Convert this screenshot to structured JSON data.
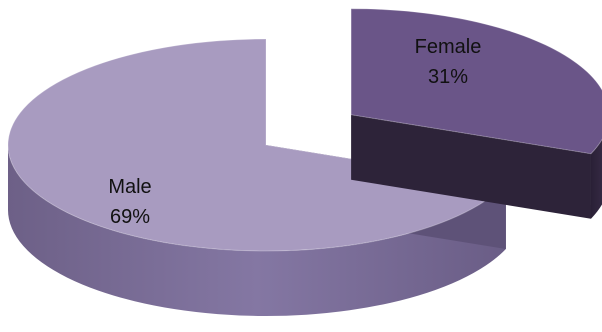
{
  "chart_data": {
    "type": "pie",
    "style": "3d-exploded",
    "slices": [
      {
        "label": "Female",
        "value": 31,
        "display": "31%",
        "color": "#6a5588",
        "side_color": "#33283f"
      },
      {
        "label": "Male",
        "value": 69,
        "display": "69%",
        "color": "#a89bc0",
        "side_color": "#726390"
      }
    ]
  }
}
